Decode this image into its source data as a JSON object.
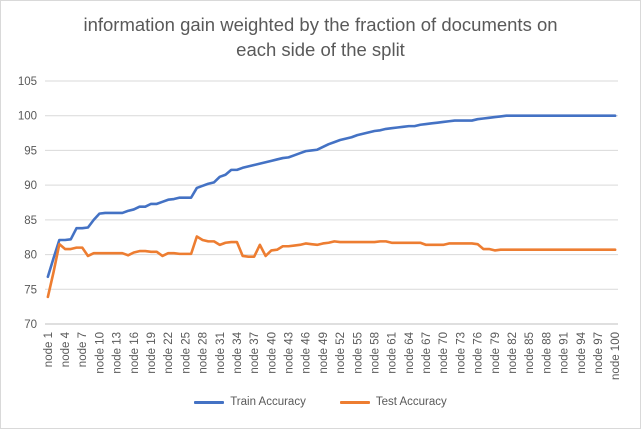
{
  "chart_data": {
    "type": "line",
    "title_lines": [
      "information gain weighted by the fraction of documents on",
      "each side of the split"
    ],
    "xlabel": "",
    "ylabel": "",
    "ylim": [
      70,
      105
    ],
    "yticks": [
      70,
      75,
      80,
      85,
      90,
      95,
      100,
      105
    ],
    "grid": true,
    "legend_position": "bottom",
    "categories": [
      "node 1",
      "node 2",
      "node 3",
      "node 4",
      "node 5",
      "node 6",
      "node 7",
      "node 8",
      "node 9",
      "node 10",
      "node 11",
      "node 12",
      "node 13",
      "node 14",
      "node 15",
      "node 16",
      "node 17",
      "node 18",
      "node 19",
      "node 20",
      "node 21",
      "node 22",
      "node 23",
      "node 24",
      "node 25",
      "node 26",
      "node 27",
      "node 28",
      "node 29",
      "node 30",
      "node 31",
      "node 32",
      "node 33",
      "node 34",
      "node 35",
      "node 36",
      "node 37",
      "node 38",
      "node 39",
      "node 40",
      "node 41",
      "node 42",
      "node 43",
      "node 44",
      "node 45",
      "node 46",
      "node 47",
      "node 48",
      "node 49",
      "node 50",
      "node 51",
      "node 52",
      "node 53",
      "node 54",
      "node 55",
      "node 56",
      "node 57",
      "node 58",
      "node 59",
      "node 60",
      "node 61",
      "node 62",
      "node 63",
      "node 64",
      "node 65",
      "node 66",
      "node 67",
      "node 68",
      "node 69",
      "node 70",
      "node 71",
      "node 72",
      "node 73",
      "node 74",
      "node 75",
      "node 76",
      "node 77",
      "node 78",
      "node 79",
      "node 80",
      "node 81",
      "node 82",
      "node 83",
      "node 84",
      "node 85",
      "node 86",
      "node 87",
      "node 88",
      "node 89",
      "node 90",
      "node 91",
      "node 92",
      "node 93",
      "node 94",
      "node 95",
      "node 96",
      "node 97",
      "node 98",
      "node 99",
      "node 100"
    ],
    "tick_labels": [
      "node 1",
      "node 4",
      "node 7",
      "node 10",
      "node 13",
      "node 16",
      "node 19",
      "node 22",
      "node 25",
      "node 28",
      "node 31",
      "node 34",
      "node 37",
      "node 40",
      "node 43",
      "node 46",
      "node 49",
      "node 52",
      "node 55",
      "node 58",
      "node 61",
      "node 64",
      "node 67",
      "node 70",
      "node 73",
      "node 76",
      "node 79",
      "node 82",
      "node 85",
      "node 88",
      "node 91",
      "node 94",
      "node 97",
      "node 100"
    ],
    "series": [
      {
        "name": "Train Accuracy",
        "color": "#4472c4",
        "values": [
          76.8,
          79.5,
          82.1,
          82.1,
          82.2,
          83.8,
          83.8,
          83.9,
          85.0,
          85.9,
          86.0,
          86.0,
          86.0,
          86.0,
          86.3,
          86.5,
          86.9,
          86.9,
          87.3,
          87.3,
          87.6,
          87.9,
          88.0,
          88.2,
          88.2,
          88.2,
          89.6,
          89.9,
          90.2,
          90.4,
          91.2,
          91.5,
          92.2,
          92.2,
          92.5,
          92.7,
          92.9,
          93.1,
          93.3,
          93.5,
          93.7,
          93.9,
          94.0,
          94.3,
          94.6,
          94.9,
          95.0,
          95.1,
          95.5,
          95.9,
          96.2,
          96.5,
          96.7,
          96.9,
          97.2,
          97.4,
          97.6,
          97.8,
          97.9,
          98.1,
          98.2,
          98.3,
          98.4,
          98.5,
          98.5,
          98.7,
          98.8,
          98.9,
          99.0,
          99.1,
          99.2,
          99.3,
          99.3,
          99.3,
          99.3,
          99.5,
          99.6,
          99.7,
          99.8,
          99.9,
          100,
          100,
          100,
          100,
          100,
          100,
          100,
          100,
          100,
          100,
          100,
          100,
          100,
          100,
          100,
          100,
          100,
          100,
          100,
          100
        ]
      },
      {
        "name": "Test Accuracy",
        "color": "#ed7d31",
        "values": [
          73.9,
          77.5,
          81.5,
          80.8,
          80.8,
          81.0,
          81.0,
          79.8,
          80.2,
          80.2,
          80.2,
          80.2,
          80.2,
          80.2,
          79.9,
          80.3,
          80.5,
          80.5,
          80.4,
          80.4,
          79.8,
          80.2,
          80.2,
          80.1,
          80.1,
          80.1,
          82.6,
          82.1,
          81.9,
          81.9,
          81.4,
          81.7,
          81.8,
          81.8,
          79.8,
          79.7,
          79.7,
          81.4,
          79.8,
          80.6,
          80.7,
          81.2,
          81.2,
          81.3,
          81.4,
          81.6,
          81.5,
          81.4,
          81.6,
          81.7,
          81.9,
          81.8,
          81.8,
          81.8,
          81.8,
          81.8,
          81.8,
          81.8,
          81.9,
          81.9,
          81.7,
          81.7,
          81.7,
          81.7,
          81.7,
          81.7,
          81.4,
          81.4,
          81.4,
          81.4,
          81.6,
          81.6,
          81.6,
          81.6,
          81.6,
          81.5,
          80.8,
          80.8,
          80.6,
          80.7,
          80.7,
          80.7,
          80.7,
          80.7,
          80.7,
          80.7,
          80.7,
          80.7,
          80.7,
          80.7,
          80.7,
          80.7,
          80.7,
          80.7,
          80.7,
          80.7,
          80.7,
          80.7,
          80.7,
          80.7
        ]
      }
    ]
  }
}
